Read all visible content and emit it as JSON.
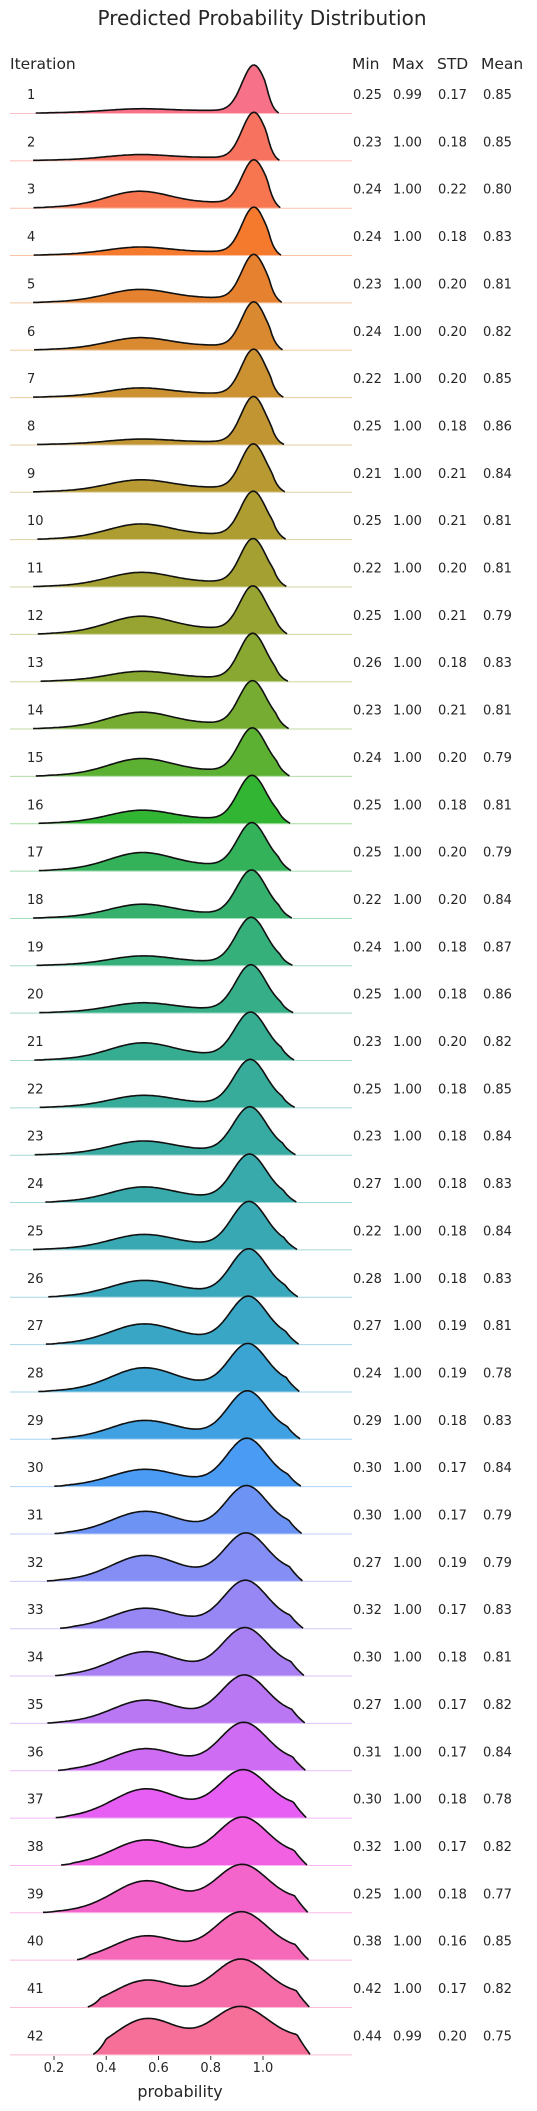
{
  "chart_data": {
    "type": "ridgeline",
    "title": "Predicted Probability Distribution",
    "xlabel": "probability",
    "row_header": "Iteration",
    "stat_headers": [
      "Min",
      "Max",
      "STD",
      "Mean"
    ],
    "x_ticks": [
      "0.2",
      "0.4",
      "0.6",
      "0.8",
      "1.0"
    ],
    "x_tick_values": [
      0.2,
      0.4,
      0.6,
      0.8,
      1.0
    ],
    "xlim": [
      0.1,
      1.2
    ],
    "grid": false,
    "rows": [
      {
        "label": "1",
        "color": "#f77189",
        "stats": [
          "0.25",
          "0.99",
          "0.17",
          "0.85"
        ]
      },
      {
        "label": "2",
        "color": "#f7735f",
        "stats": [
          "0.23",
          "1.00",
          "0.18",
          "0.85"
        ]
      },
      {
        "label": "3",
        "color": "#f7754f",
        "stats": [
          "0.24",
          "1.00",
          "0.22",
          "0.80"
        ]
      },
      {
        "label": "4",
        "color": "#f67a2e",
        "stats": [
          "0.24",
          "1.00",
          "0.18",
          "0.83"
        ]
      },
      {
        "label": "5",
        "color": "#e6822f",
        "stats": [
          "0.23",
          "1.00",
          "0.20",
          "0.81"
        ]
      },
      {
        "label": "6",
        "color": "#d98a30",
        "stats": [
          "0.24",
          "1.00",
          "0.20",
          "0.82"
        ]
      },
      {
        "label": "7",
        "color": "#cc9131",
        "stats": [
          "0.22",
          "1.00",
          "0.20",
          "0.85"
        ]
      },
      {
        "label": "8",
        "color": "#c19532",
        "stats": [
          "0.25",
          "1.00",
          "0.18",
          "0.86"
        ]
      },
      {
        "label": "9",
        "color": "#b89932",
        "stats": [
          "0.21",
          "1.00",
          "0.21",
          "0.84"
        ]
      },
      {
        "label": "10",
        "color": "#ae9d31",
        "stats": [
          "0.25",
          "1.00",
          "0.21",
          "0.81"
        ]
      },
      {
        "label": "11",
        "color": "#a4a031",
        "stats": [
          "0.22",
          "1.00",
          "0.20",
          "0.81"
        ]
      },
      {
        "label": "12",
        "color": "#97a431",
        "stats": [
          "0.25",
          "1.00",
          "0.21",
          "0.79"
        ]
      },
      {
        "label": "13",
        "color": "#89a832",
        "stats": [
          "0.26",
          "1.00",
          "0.18",
          "0.83"
        ]
      },
      {
        "label": "14",
        "color": "#77ac32",
        "stats": [
          "0.23",
          "1.00",
          "0.21",
          "0.81"
        ]
      },
      {
        "label": "15",
        "color": "#5cb132",
        "stats": [
          "0.24",
          "1.00",
          "0.20",
          "0.79"
        ]
      },
      {
        "label": "16",
        "color": "#33b534",
        "stats": [
          "0.25",
          "1.00",
          "0.18",
          "0.81"
        ]
      },
      {
        "label": "17",
        "color": "#34b25a",
        "stats": [
          "0.25",
          "1.00",
          "0.20",
          "0.79"
        ]
      },
      {
        "label": "18",
        "color": "#35b16d",
        "stats": [
          "0.22",
          "1.00",
          "0.20",
          "0.84"
        ]
      },
      {
        "label": "19",
        "color": "#35b07b",
        "stats": [
          "0.24",
          "1.00",
          "0.18",
          "0.87"
        ]
      },
      {
        "label": "20",
        "color": "#36ae87",
        "stats": [
          "0.25",
          "1.00",
          "0.18",
          "0.86"
        ]
      },
      {
        "label": "21",
        "color": "#36ad91",
        "stats": [
          "0.23",
          "1.00",
          "0.20",
          "0.82"
        ]
      },
      {
        "label": "22",
        "color": "#37ac9a",
        "stats": [
          "0.25",
          "1.00",
          "0.18",
          "0.85"
        ]
      },
      {
        "label": "23",
        "color": "#37aba2",
        "stats": [
          "0.23",
          "1.00",
          "0.18",
          "0.84"
        ]
      },
      {
        "label": "24",
        "color": "#38aaab",
        "stats": [
          "0.27",
          "1.00",
          "0.18",
          "0.83"
        ]
      },
      {
        "label": "25",
        "color": "#38a9b3",
        "stats": [
          "0.22",
          "1.00",
          "0.18",
          "0.84"
        ]
      },
      {
        "label": "26",
        "color": "#39a7bc",
        "stats": [
          "0.28",
          "1.00",
          "0.18",
          "0.83"
        ]
      },
      {
        "label": "27",
        "color": "#3aa6c6",
        "stats": [
          "0.27",
          "1.00",
          "0.19",
          "0.81"
        ]
      },
      {
        "label": "28",
        "color": "#3ca4d2",
        "stats": [
          "0.24",
          "1.00",
          "0.19",
          "0.78"
        ]
      },
      {
        "label": "29",
        "color": "#3fa1e1",
        "stats": [
          "0.29",
          "1.00",
          "0.18",
          "0.83"
        ]
      },
      {
        "label": "30",
        "color": "#4a9bf4",
        "stats": [
          "0.30",
          "1.00",
          "0.17",
          "0.84"
        ]
      },
      {
        "label": "31",
        "color": "#6d94f4",
        "stats": [
          "0.30",
          "1.00",
          "0.17",
          "0.79"
        ]
      },
      {
        "label": "32",
        "color": "#848ef4",
        "stats": [
          "0.27",
          "1.00",
          "0.19",
          "0.79"
        ]
      },
      {
        "label": "33",
        "color": "#9787f4",
        "stats": [
          "0.32",
          "1.00",
          "0.17",
          "0.83"
        ]
      },
      {
        "label": "34",
        "color": "#a980f4",
        "stats": [
          "0.30",
          "1.00",
          "0.18",
          "0.81"
        ]
      },
      {
        "label": "35",
        "color": "#ba77f4",
        "stats": [
          "0.27",
          "1.00",
          "0.17",
          "0.82"
        ]
      },
      {
        "label": "36",
        "color": "#ce6cf4",
        "stats": [
          "0.31",
          "1.00",
          "0.17",
          "0.84"
        ]
      },
      {
        "label": "37",
        "color": "#e65ef3",
        "stats": [
          "0.30",
          "1.00",
          "0.18",
          "0.78"
        ]
      },
      {
        "label": "38",
        "color": "#f261e1",
        "stats": [
          "0.32",
          "1.00",
          "0.17",
          "0.82"
        ]
      },
      {
        "label": "39",
        "color": "#f465cb",
        "stats": [
          "0.25",
          "1.00",
          "0.18",
          "0.77"
        ]
      },
      {
        "label": "40",
        "color": "#f569b8",
        "stats": [
          "0.38",
          "1.00",
          "0.16",
          "0.85"
        ]
      },
      {
        "label": "41",
        "color": "#f66ca8",
        "stats": [
          "0.42",
          "1.00",
          "0.17",
          "0.82"
        ]
      },
      {
        "label": "42",
        "color": "#f66f98",
        "stats": [
          "0.44",
          "0.99",
          "0.20",
          "0.75"
        ]
      }
    ]
  }
}
